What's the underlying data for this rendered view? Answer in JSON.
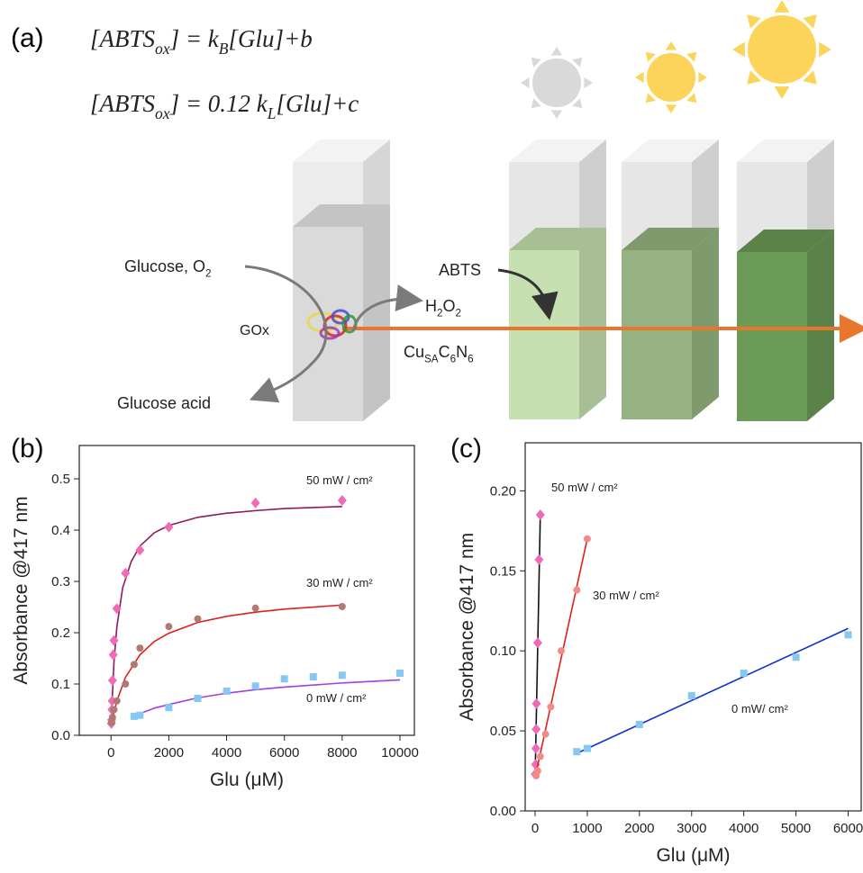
{
  "panel_a": {
    "label": "(a)",
    "equation_1": [
      "[ABTS",
      "ox",
      "] = k",
      "B",
      "[Glu]+b"
    ],
    "equation_2": [
      "[ABTS",
      "ox",
      "] = 0.12 k",
      "L",
      "[Glu]+c"
    ],
    "glucose_o2": [
      "Glucose, O",
      "2"
    ],
    "gox": [
      "GOx"
    ],
    "glucose_acid": [
      "Glucose acid"
    ],
    "abts": [
      "ABTS"
    ],
    "h2o2": [
      "H",
      "2",
      "O",
      "2"
    ],
    "catalyst": [
      "Cu",
      "SA",
      "C",
      "6",
      "N",
      "6"
    ]
  },
  "chart_data": [
    {
      "type": "scatter",
      "panel_label": "(b)",
      "xlabel": "Glu (μM)",
      "ylabel": "Absorbance @417 nm",
      "xlim": [
        -1100,
        10500
      ],
      "ylim": [
        0,
        0.565
      ],
      "xticks": [
        0,
        2000,
        4000,
        6000,
        8000,
        10000
      ],
      "yticks": [
        {
          "value": 0,
          "label": "0.0"
        },
        0.1,
        0.2,
        0.3,
        0.4,
        0.5
      ],
      "series": [
        {
          "name": "50 mW / cm²",
          "marker": "diamond",
          "color": "#f06ab8",
          "fit_color": "#8e1a5e",
          "x": [
            10,
            20,
            30,
            40,
            50,
            75,
            100,
            200,
            500,
            1000,
            2000,
            5000,
            8000
          ],
          "values": [
            0.023,
            0.03,
            0.05,
            0.067,
            0.107,
            0.157,
            0.185,
            0.247,
            0.316,
            0.361,
            0.406,
            0.453,
            0.458
          ],
          "fit_x": [
            0,
            100,
            200,
            400,
            700,
            1000,
            1500,
            2000,
            3000,
            4000,
            5000,
            6000,
            8000
          ],
          "fit_values": [
            0.02,
            0.142,
            0.211,
            0.287,
            0.339,
            0.369,
            0.395,
            0.409,
            0.425,
            0.433,
            0.438,
            0.442,
            0.446
          ]
        },
        {
          "name": "30 mW / cm²",
          "marker": "circle",
          "color": "#b07a72",
          "fit_color": "#e0201c",
          "x": [
            20,
            50,
            100,
            200,
            500,
            800,
            1000,
            2000,
            3000,
            5000,
            8000
          ],
          "values": [
            0.025,
            0.035,
            0.05,
            0.067,
            0.1,
            0.138,
            0.17,
            0.212,
            0.227,
            0.248,
            0.251
          ],
          "fit_x": [
            0,
            200,
            500,
            1000,
            1500,
            2000,
            3000,
            4000,
            5000,
            6000,
            7000,
            8000
          ],
          "fit_values": [
            0.02,
            0.067,
            0.113,
            0.157,
            0.183,
            0.199,
            0.22,
            0.232,
            0.24,
            0.246,
            0.25,
            0.254
          ]
        },
        {
          "name": "0 mW / cm²",
          "marker": "square",
          "color": "#86c8f2",
          "fit_color": "#a03ee0",
          "x": [
            800,
            1000,
            2000,
            3000,
            4000,
            5000,
            6000,
            7000,
            8000,
            10000
          ],
          "values": [
            0.037,
            0.039,
            0.054,
            0.072,
            0.086,
            0.096,
            0.11,
            0.114,
            0.117,
            0.121
          ],
          "fit_x": [
            800,
            1500,
            2000,
            3000,
            4000,
            5000,
            6000,
            8000,
            10000
          ],
          "fit_values": [
            0.038,
            0.053,
            0.06,
            0.073,
            0.082,
            0.089,
            0.094,
            0.102,
            0.108
          ]
        }
      ]
    },
    {
      "type": "scatter",
      "panel_label": "(c)",
      "xlabel": "Glu (μM)",
      "ylabel": "Absorbance @417 nm",
      "xlim": [
        -190,
        6250
      ],
      "ylim": [
        0,
        0.23
      ],
      "xticks": [
        0,
        1000,
        2000,
        3000,
        4000,
        5000,
        6000
      ],
      "yticks": [
        {
          "value": 0,
          "label": "0.00"
        },
        {
          "value": 0.05,
          "label": "0.05"
        },
        {
          "value": 0.1,
          "label": "0.10"
        },
        {
          "value": 0.15,
          "label": "0.15"
        },
        {
          "value": 0.2,
          "label": "0.20"
        }
      ],
      "series": [
        {
          "name": "50 mW / cm²",
          "marker": "diamond",
          "color": "#f06ab8",
          "fit_color": "#111111",
          "x": [
            5,
            10,
            15,
            20,
            25,
            50,
            75,
            100
          ],
          "values": [
            0.023,
            0.029,
            0.039,
            0.051,
            0.067,
            0.105,
            0.157,
            0.185
          ],
          "fit_x": [
            0,
            100
          ],
          "fit_values": [
            0.02,
            0.185
          ]
        },
        {
          "name": "30 mW / cm²",
          "marker": "circle",
          "color": "#f28a8a",
          "fit_color": "#e0201c",
          "x": [
            20,
            50,
            100,
            200,
            300,
            500,
            800,
            1000
          ],
          "values": [
            0.022,
            0.025,
            0.034,
            0.048,
            0.065,
            0.1,
            0.138,
            0.17
          ],
          "fit_x": [
            0,
            1000
          ],
          "fit_values": [
            0.021,
            0.17
          ]
        },
        {
          "name": "0 mW/ cm²",
          "marker": "square",
          "color": "#86c8f2",
          "fit_color": "#1030d0",
          "x": [
            800,
            1000,
            2000,
            3000,
            4000,
            5000,
            6000
          ],
          "values": [
            0.037,
            0.039,
            0.054,
            0.072,
            0.086,
            0.096,
            0.11
          ],
          "fit_x": [
            800,
            6000
          ],
          "fit_values": [
            0.036,
            0.114
          ]
        }
      ]
    }
  ]
}
